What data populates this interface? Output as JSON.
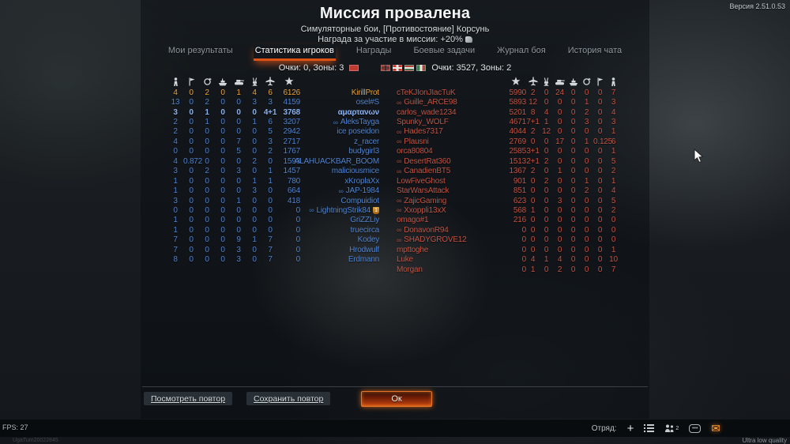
{
  "version": "Версия 2.51.0.53",
  "header": {
    "title": "Миссия провалена",
    "subtitle": "Симуляторные бои, [Противостояние] Корсунь",
    "reward_label": "Награда за участие в миссии: +20%"
  },
  "tabs": [
    {
      "id": "my-results",
      "label": "Мои результаты",
      "active": false
    },
    {
      "id": "player-stats",
      "label": "Статистика игроков",
      "active": true
    },
    {
      "id": "awards",
      "label": "Награды",
      "active": false
    },
    {
      "id": "battle-tasks",
      "label": "Боевые задачи",
      "active": false
    },
    {
      "id": "battle-log",
      "label": "Журнал боя",
      "active": false
    },
    {
      "id": "chat-history",
      "label": "История чата",
      "active": false
    }
  ],
  "scoreboard": {
    "left_score": "Очки: 0, Зоны: 3",
    "right_score": "Очки: 3527, Зоны: 2",
    "left_flags": [
      "ussr"
    ],
    "right_flags": [
      "germany",
      "switzerland",
      "hungary",
      "italy"
    ],
    "columns_left_to_right": [
      "deaths",
      "captures",
      "assists",
      "naval-kills",
      "ground-kills",
      "aa-kills",
      "air-kills",
      "score"
    ],
    "colors": {
      "left_team": "#4f82cf",
      "right_team": "#c25242",
      "player_highlight": "#e8a33d",
      "accent": "#dc5215"
    },
    "left_team": {
      "rows": [
        {
          "name": "KirillProt",
          "squad": false,
          "highlight": true,
          "bright": false,
          "badge": "",
          "values": [
            "4",
            "0",
            "2",
            "0",
            "1",
            "4",
            "6"
          ],
          "score": "6126"
        },
        {
          "name": "osel#S",
          "squad": false,
          "highlight": false,
          "bright": false,
          "badge": "",
          "values": [
            "13",
            "0",
            "2",
            "0",
            "0",
            "3",
            "3"
          ],
          "score": "4159"
        },
        {
          "name": "αμαρτανων",
          "squad": false,
          "highlight": false,
          "bright": true,
          "badge": "",
          "values": [
            "3",
            "0",
            "1",
            "0",
            "0",
            "0",
            "4+1"
          ],
          "score": "3768"
        },
        {
          "name": "AleksTayga",
          "squad": true,
          "highlight": false,
          "bright": false,
          "badge": "",
          "values": [
            "2",
            "0",
            "1",
            "0",
            "0",
            "1",
            "6"
          ],
          "score": "3207"
        },
        {
          "name": "ice poseidon",
          "squad": false,
          "highlight": false,
          "bright": false,
          "badge": "",
          "values": [
            "2",
            "0",
            "0",
            "0",
            "0",
            "0",
            "5"
          ],
          "score": "2942"
        },
        {
          "name": "z_racer",
          "squad": false,
          "highlight": false,
          "bright": false,
          "badge": "",
          "values": [
            "4",
            "0",
            "0",
            "0",
            "7",
            "0",
            "3"
          ],
          "score": "2717"
        },
        {
          "name": "budygirl3",
          "squad": false,
          "highlight": false,
          "bright": false,
          "badge": "",
          "values": [
            "0",
            "0",
            "0",
            "0",
            "5",
            "0",
            "2"
          ],
          "score": "1767"
        },
        {
          "name": "ALAHUACKBAR_BOOM",
          "squad": false,
          "highlight": false,
          "bright": false,
          "badge": "",
          "values": [
            "4",
            "0.872",
            "0",
            "0",
            "0",
            "2",
            "0"
          ],
          "score": "1593"
        },
        {
          "name": "maliciousmice",
          "squad": false,
          "highlight": false,
          "bright": false,
          "badge": "",
          "values": [
            "3",
            "0",
            "2",
            "0",
            "3",
            "0",
            "1"
          ],
          "score": "1457"
        },
        {
          "name": "xKroplaXx",
          "squad": false,
          "highlight": false,
          "bright": false,
          "badge": "",
          "values": [
            "1",
            "0",
            "0",
            "0",
            "0",
            "1",
            "1"
          ],
          "score": "780"
        },
        {
          "name": "JAP-1984",
          "squad": true,
          "highlight": false,
          "bright": false,
          "badge": "",
          "values": [
            "1",
            "0",
            "0",
            "0",
            "0",
            "3",
            "0"
          ],
          "score": "664"
        },
        {
          "name": "Compuidiot",
          "squad": false,
          "highlight": false,
          "bright": false,
          "badge": "",
          "values": [
            "3",
            "0",
            "0",
            "0",
            "1",
            "0",
            "0"
          ],
          "score": "418"
        },
        {
          "name": "LightningStrik84",
          "squad": true,
          "highlight": false,
          "bright": false,
          "badge": "1",
          "values": [
            "0",
            "0",
            "0",
            "0",
            "0",
            "0",
            "0"
          ],
          "score": "0"
        },
        {
          "name": "GriZZLiy",
          "squad": false,
          "highlight": false,
          "bright": false,
          "badge": "",
          "values": [
            "1",
            "0",
            "0",
            "0",
            "0",
            "0",
            "0"
          ],
          "score": "0"
        },
        {
          "name": "truecirca",
          "squad": false,
          "highlight": false,
          "bright": false,
          "badge": "",
          "values": [
            "1",
            "0",
            "0",
            "0",
            "0",
            "0",
            "0"
          ],
          "score": "0"
        },
        {
          "name": "Kodey",
          "squad": false,
          "highlight": false,
          "bright": false,
          "badge": "",
          "values": [
            "7",
            "0",
            "0",
            "0",
            "9",
            "1",
            "7"
          ],
          "score": "0"
        },
        {
          "name": "Hrodwulf",
          "squad": false,
          "highlight": false,
          "bright": false,
          "badge": "",
          "values": [
            "7",
            "0",
            "0",
            "0",
            "3",
            "0",
            "7"
          ],
          "score": "0"
        },
        {
          "name": "Erdmann",
          "squad": false,
          "highlight": false,
          "bright": false,
          "badge": "",
          "values": [
            "8",
            "0",
            "0",
            "0",
            "3",
            "0",
            "7"
          ],
          "score": "0"
        }
      ]
    },
    "right_team": {
      "rows": [
        {
          "name": "cTeKJIonJIacTuK",
          "squad": false,
          "values": [
            "2",
            "0",
            "24",
            "0",
            "0",
            "0",
            "7"
          ],
          "score": "5990"
        },
        {
          "name": "Guille_ARCE98",
          "squad": true,
          "values": [
            "12",
            "0",
            "0",
            "0",
            "1",
            "0",
            "3"
          ],
          "score": "5893"
        },
        {
          "name": "carlos_wade1234",
          "squad": false,
          "values": [
            "8",
            "4",
            "0",
            "0",
            "2",
            "0",
            "4"
          ],
          "score": "5201"
        },
        {
          "name": "Spunky_WOLF",
          "squad": false,
          "values": [
            "7+1",
            "1",
            "0",
            "0",
            "3",
            "0",
            "3"
          ],
          "score": "4671"
        },
        {
          "name": "Hades7317",
          "squad": true,
          "values": [
            "2",
            "12",
            "0",
            "0",
            "0",
            "0",
            "1"
          ],
          "score": "4044"
        },
        {
          "name": "Plausni",
          "squad": true,
          "values": [
            "0",
            "0",
            "17",
            "0",
            "1",
            "0.125",
            "6"
          ],
          "score": "2769"
        },
        {
          "name": "orca80804",
          "squad": false,
          "values": [
            "3+1",
            "0",
            "0",
            "0",
            "0",
            "0",
            "1"
          ],
          "score": "2585"
        },
        {
          "name": "DesertRat360",
          "squad": true,
          "values": [
            "2+1",
            "2",
            "0",
            "0",
            "0",
            "0",
            "5"
          ],
          "score": "1513"
        },
        {
          "name": "CanadienBT5",
          "squad": true,
          "values": [
            "2",
            "0",
            "1",
            "0",
            "0",
            "0",
            "2"
          ],
          "score": "1367"
        },
        {
          "name": "LowFiveGhost",
          "squad": false,
          "values": [
            "0",
            "2",
            "0",
            "0",
            "1",
            "0",
            "1"
          ],
          "score": "901"
        },
        {
          "name": "StarWarsAttack",
          "squad": false,
          "values": [
            "0",
            "0",
            "0",
            "0",
            "2",
            "0",
            "4"
          ],
          "score": "851"
        },
        {
          "name": "ZajicGaming",
          "squad": true,
          "values": [
            "0",
            "0",
            "3",
            "0",
            "0",
            "0",
            "5"
          ],
          "score": "623"
        },
        {
          "name": "Xxoppli13xX",
          "squad": true,
          "values": [
            "1",
            "0",
            "0",
            "0",
            "0",
            "0",
            "2"
          ],
          "score": "568"
        },
        {
          "name": "omago#1",
          "squad": false,
          "values": [
            "0",
            "0",
            "0",
            "0",
            "0",
            "0",
            "0"
          ],
          "score": "216"
        },
        {
          "name": "DonavonR94",
          "squad": true,
          "values": [
            "0",
            "0",
            "0",
            "0",
            "0",
            "0",
            "0"
          ],
          "score": "0"
        },
        {
          "name": "SHADYGROVE12",
          "squad": true,
          "values": [
            "0",
            "0",
            "0",
            "0",
            "0",
            "0",
            "0"
          ],
          "score": "0"
        },
        {
          "name": "mpttoghe",
          "squad": false,
          "values": [
            "0",
            "0",
            "0",
            "0",
            "0",
            "0",
            "1"
          ],
          "score": "0"
        },
        {
          "name": "Luke",
          "squad": false,
          "values": [
            "4",
            "1",
            "4",
            "0",
            "0",
            "0",
            "10"
          ],
          "score": "0"
        },
        {
          "name": "Morgan",
          "squad": false,
          "values": [
            "1",
            "0",
            "2",
            "0",
            "0",
            "0",
            "7"
          ],
          "score": "0"
        }
      ]
    }
  },
  "footer": {
    "watch_replay": "Посмотреть повтор",
    "save_replay": "Сохранить повтор",
    "ok": "Ок"
  },
  "bottom_bar": {
    "squad_label": "Отряд:",
    "members_count": "2",
    "quality": "Ultra low quality",
    "fps": "FPS: 27",
    "session": "UgaTum20022845"
  }
}
